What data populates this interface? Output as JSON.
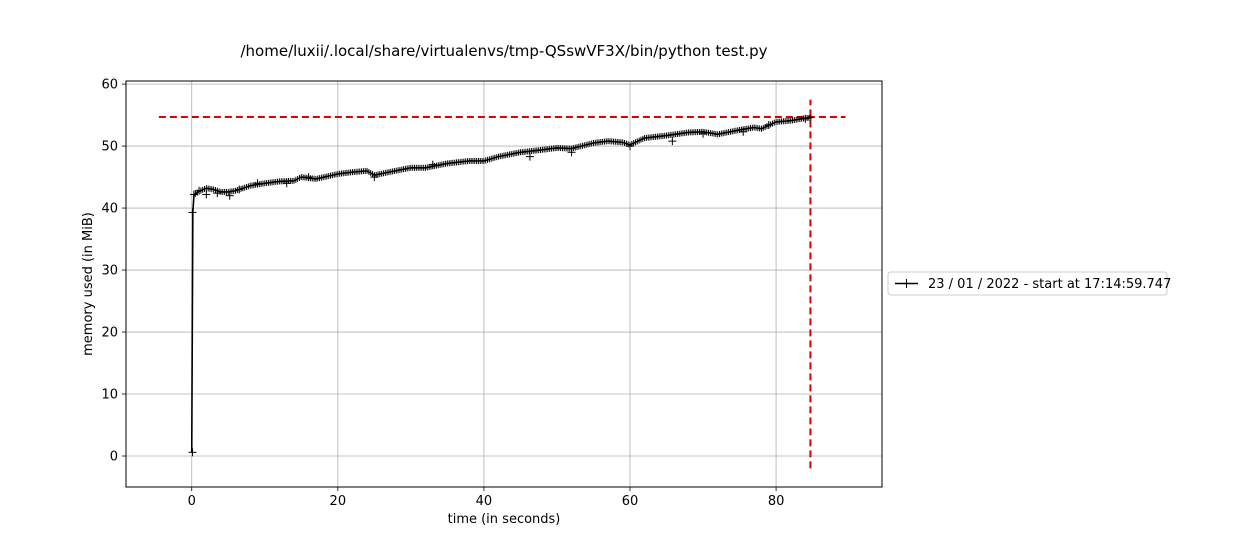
{
  "chart_data": {
    "type": "line",
    "title": "/home/luxii/.local/share/virtualenvs/tmp-QSswVF3X/bin/python test.py",
    "xlabel": "time (in seconds)",
    "ylabel": "memory used (in MiB)",
    "xlim": [
      -9,
      94.5
    ],
    "ylim": [
      -5,
      60.5
    ],
    "xticks": [
      0,
      20,
      40,
      60,
      80
    ],
    "yticks": [
      0,
      10,
      20,
      30,
      40,
      50,
      60
    ],
    "grid": true,
    "legend_position": "right",
    "series": [
      {
        "name": "23 / 01 / 2022 - start at 17:14:59.747",
        "color": "#000000",
        "marker": "plus",
        "x": [
          0,
          0.15,
          0.3,
          0.5,
          1,
          2,
          3,
          4,
          5,
          6,
          7,
          8,
          10,
          12,
          14,
          15,
          17,
          20,
          22,
          24,
          25,
          27,
          30,
          32,
          35,
          38,
          40,
          42,
          45,
          48,
          50,
          52,
          55,
          57,
          59,
          60,
          62,
          65,
          68,
          70,
          72,
          75,
          77,
          78,
          80,
          82,
          84,
          85
        ],
        "y": [
          0.6,
          39.3,
          42.0,
          42.3,
          42.7,
          43.2,
          43.0,
          42.6,
          42.6,
          42.8,
          43.2,
          43.6,
          44.0,
          44.3,
          44.4,
          45.0,
          44.7,
          45.5,
          45.8,
          46.0,
          45.3,
          45.8,
          46.5,
          46.5,
          47.2,
          47.6,
          47.6,
          48.3,
          49.0,
          49.4,
          49.7,
          49.6,
          50.5,
          50.8,
          50.6,
          50.2,
          51.3,
          51.7,
          52.2,
          52.3,
          51.9,
          52.6,
          53.0,
          52.8,
          53.9,
          54.1,
          54.5,
          54.6
        ]
      }
    ],
    "annotations": {
      "max_memory_line_y": 54.7,
      "max_memory_x_range": [
        -4.5,
        89.5
      ],
      "max_time_line_x": 84.7,
      "max_time_y_range": [
        -2,
        57.5
      ],
      "line_color": "#dd0000"
    },
    "markers": [
      {
        "x": 0.1,
        "y": 0.6
      },
      {
        "x": 0.1,
        "y": 39.3
      },
      {
        "x": 0.3,
        "y": 42.2
      },
      {
        "x": 1.0,
        "y": 42.8
      },
      {
        "x": 2.0,
        "y": 42.2
      },
      {
        "x": 3.5,
        "y": 42.4
      },
      {
        "x": 5.2,
        "y": 42.0
      },
      {
        "x": 6.5,
        "y": 43.0
      },
      {
        "x": 9.0,
        "y": 44.0
      },
      {
        "x": 13.0,
        "y": 44.0
      },
      {
        "x": 16.0,
        "y": 45.0
      },
      {
        "x": 25.0,
        "y": 45.0
      },
      {
        "x": 33.0,
        "y": 47.0
      },
      {
        "x": 46.3,
        "y": 48.3
      },
      {
        "x": 52.0,
        "y": 49.0
      },
      {
        "x": 60.0,
        "y": 50.0
      },
      {
        "x": 65.8,
        "y": 50.8
      },
      {
        "x": 70.0,
        "y": 52.0
      },
      {
        "x": 75.5,
        "y": 52.3
      },
      {
        "x": 79.0,
        "y": 53.4
      },
      {
        "x": 84.0,
        "y": 54.4
      }
    ]
  }
}
